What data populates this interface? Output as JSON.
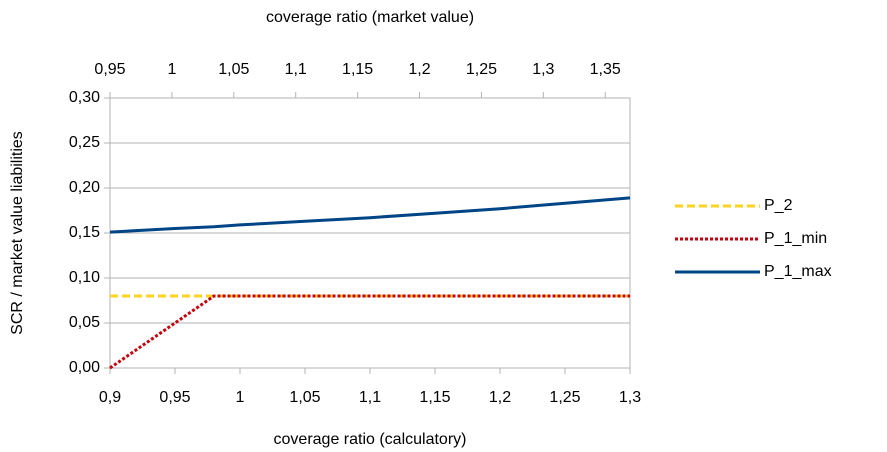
{
  "chart_data": {
    "type": "line",
    "x_axis_label": "coverage ratio (calculatory)",
    "x2_axis_label": "coverage ratio (market value)",
    "y_axis_label": "SCR / market value liabilities",
    "x": [
      0.9,
      0.95,
      0.98,
      1,
      1.05,
      1.1,
      1.15,
      1.2,
      1.25,
      1.3
    ],
    "series": [
      {
        "name": "P_2",
        "color": "#ffd320",
        "dash": "dashed",
        "values": [
          0.08,
          0.08,
          0.08,
          0.08,
          0.08,
          0.08,
          0.08,
          0.08,
          0.08,
          0.08
        ]
      },
      {
        "name": "P_1_min",
        "color": "#c5000b",
        "dash": "dotted",
        "values": [
          0,
          0.05,
          0.08,
          0.08,
          0.08,
          0.08,
          0.08,
          0.08,
          0.08,
          0.08
        ]
      },
      {
        "name": "P_1_max",
        "color": "#004586",
        "dash": "solid",
        "values": [
          0.151,
          0.155,
          0.157,
          0.159,
          0.163,
          0.167,
          0.172,
          0.177,
          0.183,
          0.189
        ]
      }
    ],
    "xlim": [
      0.9,
      1.3
    ],
    "xticks": [
      {
        "value": 0.9,
        "label": "0,9"
      },
      {
        "value": 0.95,
        "label": "0,95"
      },
      1,
      {
        "value": 1.05,
        "label": "1,05"
      },
      {
        "value": 1.1,
        "label": "1,1"
      },
      {
        "value": 1.15,
        "label": "1,15"
      },
      {
        "value": 1.2,
        "label": "1,2"
      },
      {
        "value": 1.25,
        "label": "1,25"
      },
      {
        "value": 1.3,
        "label": "1,3"
      }
    ],
    "x2lim": [
      0.95,
      1.37
    ],
    "x2ticks": [
      {
        "value": 0.95,
        "label": "0,95"
      },
      1,
      {
        "value": 1.05,
        "label": "1,05"
      },
      {
        "value": 1.1,
        "label": "1,1"
      },
      {
        "value": 1.15,
        "label": "1,15"
      },
      {
        "value": 1.2,
        "label": "1,2"
      },
      {
        "value": 1.25,
        "label": "1,25"
      },
      {
        "value": 1.3,
        "label": "1,3"
      },
      {
        "value": 1.35,
        "label": "1,35"
      }
    ],
    "ylim": [
      0,
      0.3
    ],
    "yticks": [
      {
        "value": 0,
        "label": "0,00"
      },
      {
        "value": 0.05,
        "label": "0,05"
      },
      {
        "value": 0.1,
        "label": "0,10"
      },
      {
        "value": 0.15,
        "label": "0,15"
      },
      {
        "value": 0.2,
        "label": "0,20"
      },
      {
        "value": 0.25,
        "label": "0,25"
      },
      {
        "value": 0.3,
        "label": "0,30"
      }
    ],
    "grid": true,
    "legend": "right"
  }
}
